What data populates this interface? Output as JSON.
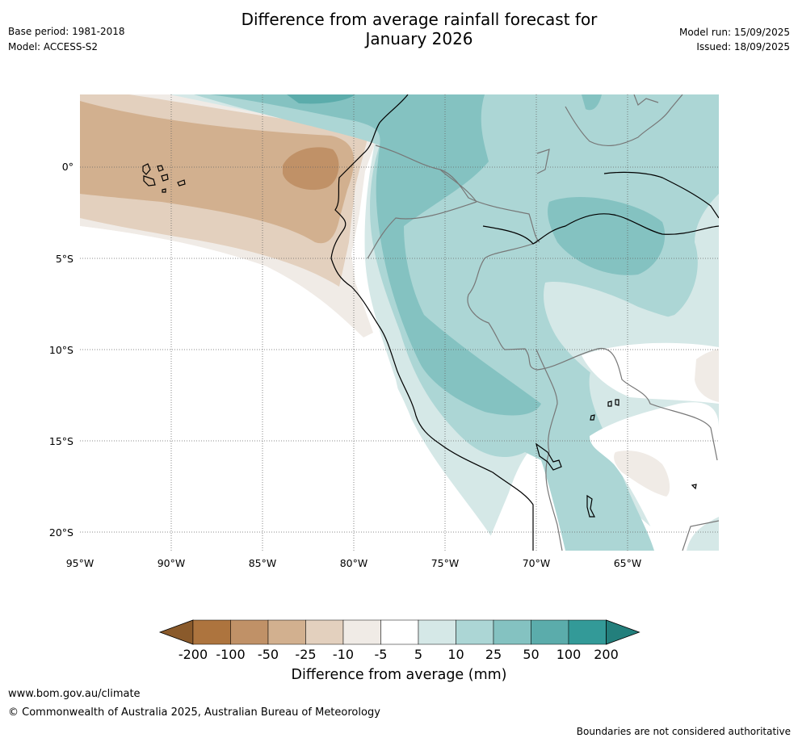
{
  "header": {
    "base_period": "Base period: 1981-2018",
    "model": "Model: ACCESS-S2",
    "title_line1": "Difference from average rainfall forecast for",
    "title_line2": "January 2026",
    "model_run": "Model run: 15/09/2025",
    "issued": "Issued: 18/09/2025"
  },
  "map": {
    "lon_labels": [
      "95°W",
      "90°W",
      "85°W",
      "80°W",
      "75°W",
      "70°W",
      "65°W"
    ],
    "lat_labels": [
      "0°",
      "5°S",
      "10°S",
      "15°S",
      "20°S"
    ],
    "lon_range": [
      -95,
      -60
    ],
    "lat_range": [
      4,
      -21
    ]
  },
  "legend": {
    "ticks": [
      "-200",
      "-100",
      "-50",
      "-25",
      "-10",
      "-5",
      "5",
      "10",
      "25",
      "50",
      "100",
      "200"
    ],
    "colors": [
      "#8a5a2b",
      "#ad743e",
      "#c09167",
      "#d2b08f",
      "#e3d0be",
      "#f0ebe6",
      "#ffffff",
      "#d5e8e7",
      "#acd6d5",
      "#84c2c1",
      "#5bacab",
      "#339a98",
      "#237f7c"
    ],
    "label": "Difference from average (mm)"
  },
  "footer": {
    "url": "www.bom.gov.au/climate",
    "copyright": "© Commonwealth of Australia 2025, Australian Bureau of Meteorology",
    "disclaimer": "Boundaries are not considered authoritative"
  }
}
